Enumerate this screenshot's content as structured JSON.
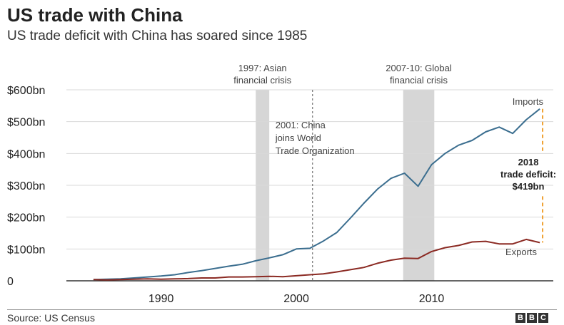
{
  "header": {
    "title": "US trade with China",
    "subtitle": "US trade deficit with China has soared since 1985"
  },
  "footer": {
    "source": "Source: US Census",
    "logo_letters": [
      "B",
      "B",
      "C"
    ]
  },
  "colors": {
    "imports": "#3b6e8f",
    "exports": "#8b2a23",
    "shade": "#d6d6d6",
    "deficit_marker": "#f0a030",
    "grid": "#d9d9d9"
  },
  "chart_data": {
    "type": "line",
    "x_range": [
      1983,
      2019
    ],
    "ylim": [
      0,
      600
    ],
    "y_ticks": [
      {
        "value": 0,
        "label": "0"
      },
      {
        "value": 100,
        "label": "$100bn"
      },
      {
        "value": 200,
        "label": "$200bn"
      },
      {
        "value": 300,
        "label": "$300bn"
      },
      {
        "value": 400,
        "label": "$400bn"
      },
      {
        "value": 500,
        "label": "$500bn"
      },
      {
        "value": 600,
        "label": "$600bn"
      }
    ],
    "x_ticks": [
      {
        "value": 1990,
        "label": "1990"
      },
      {
        "value": 2000,
        "label": "2000"
      },
      {
        "value": 2010,
        "label": "2010"
      }
    ],
    "grid": true,
    "series": [
      {
        "name": "Imports",
        "x": [
          1985,
          1986,
          1987,
          1988,
          1989,
          1990,
          1991,
          1992,
          1993,
          1994,
          1995,
          1996,
          1997,
          1998,
          1999,
          2000,
          2001,
          2002,
          2003,
          2004,
          2005,
          2006,
          2007,
          2008,
          2009,
          2010,
          2011,
          2012,
          2013,
          2014,
          2015,
          2016,
          2017,
          2018
        ],
        "values": [
          4,
          5,
          6,
          9,
          12,
          15,
          19,
          26,
          32,
          39,
          46,
          52,
          63,
          72,
          82,
          100,
          102,
          125,
          152,
          197,
          244,
          288,
          322,
          338,
          297,
          365,
          400,
          426,
          441,
          468,
          483,
          463,
          506,
          540
        ]
      },
      {
        "name": "Exports",
        "x": [
          1985,
          1986,
          1987,
          1988,
          1989,
          1990,
          1991,
          1992,
          1993,
          1994,
          1995,
          1996,
          1997,
          1998,
          1999,
          2000,
          2001,
          2002,
          2003,
          2004,
          2005,
          2006,
          2007,
          2008,
          2009,
          2010,
          2011,
          2012,
          2013,
          2014,
          2015,
          2016,
          2017,
          2018
        ],
        "values": [
          4,
          3,
          4,
          5,
          6,
          5,
          6,
          7,
          9,
          9,
          12,
          12,
          13,
          14,
          13,
          16,
          19,
          22,
          28,
          35,
          42,
          55,
          65,
          71,
          70,
          92,
          104,
          111,
          122,
          124,
          116,
          116,
          130,
          120
        ]
      }
    ],
    "shaded_periods": [
      {
        "start": 1997,
        "end": 1998,
        "label_lines": [
          "1997: Asian",
          "financial crisis"
        ]
      },
      {
        "start": 2007.9,
        "end": 2010.2,
        "label_lines": [
          "2007-10: Global",
          "financial crisis"
        ]
      }
    ],
    "vertical_markers": [
      {
        "x": 2001.2,
        "label_lines": [
          "2001: China",
          "joins World",
          "Trade Organization"
        ]
      }
    ],
    "deficit_annotation": {
      "x": 2018,
      "top_value": 540,
      "bottom_value": 120,
      "label_lines": [
        "2018",
        "trade deficit:",
        "$419bn"
      ]
    }
  }
}
